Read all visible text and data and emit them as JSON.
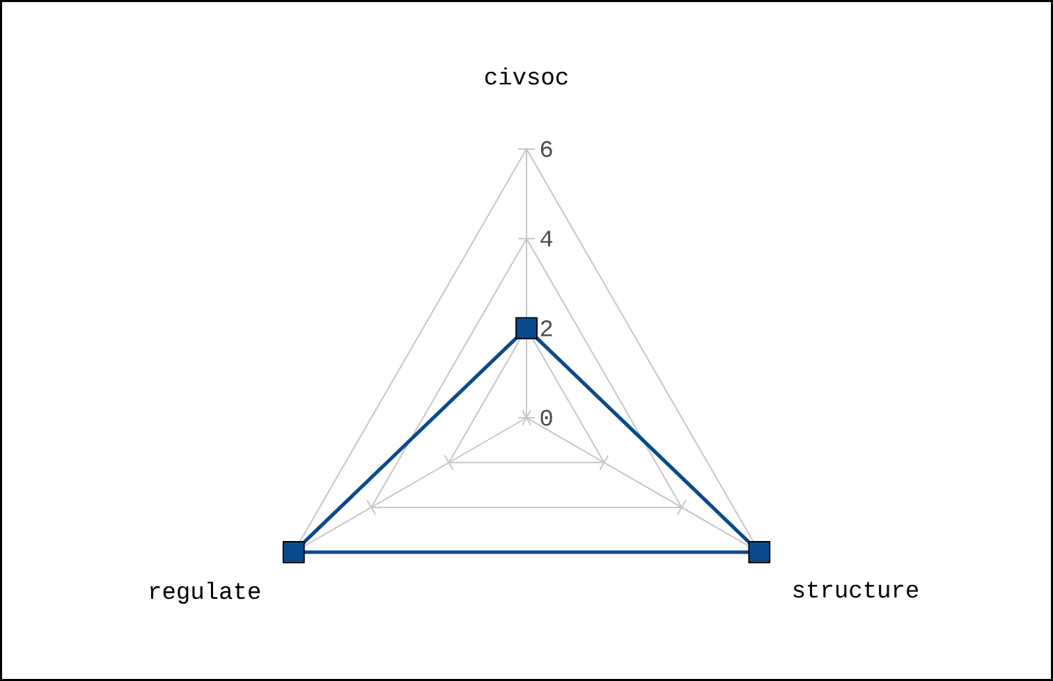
{
  "chart_data": {
    "type": "radar",
    "categories": [
      "civsoc",
      "structure",
      "regulate"
    ],
    "series": [
      {
        "color": "#0a4a8c",
        "values": [
          2,
          6,
          6
        ]
      }
    ],
    "ylim": [
      0,
      6
    ],
    "yticks": [
      0,
      2,
      4,
      6
    ],
    "grid": true,
    "marker": "square",
    "line_style": "solid"
  }
}
